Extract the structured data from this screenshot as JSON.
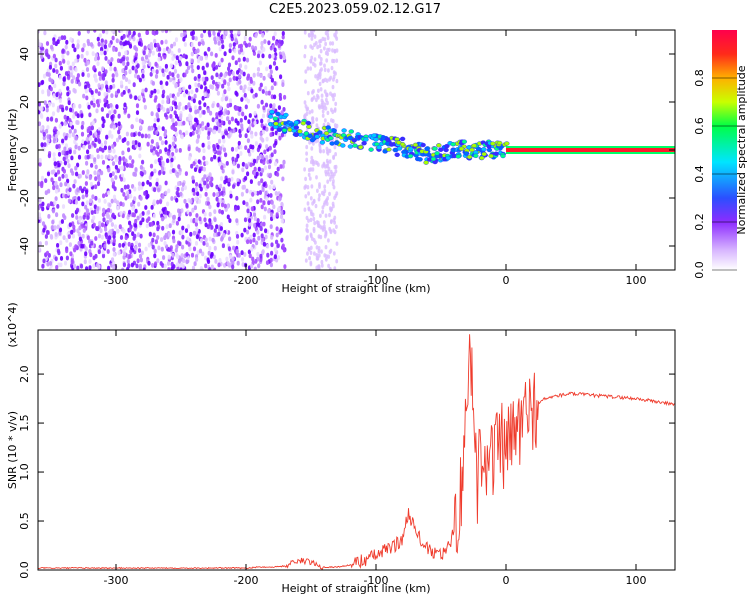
{
  "title": "C2E5.2023.059.02.12.G17",
  "colors": {
    "line": "#ef3b2c",
    "spectrum_low": "#8f2cff",
    "spectrum_mid": "#00e5ff",
    "spectrum_high": "#ff004c"
  },
  "chart_data": [
    {
      "type": "heatmap",
      "title": "C2E5.2023.059.02.12.G17",
      "xlabel": "Height of straight line (km)",
      "ylabel": "Frequency (Hz)",
      "xlim": [
        -360,
        130
      ],
      "ylim": [
        -50,
        50
      ],
      "x_ticks": [
        -300,
        -200,
        -100,
        0,
        100
      ],
      "y_ticks": [
        -40,
        -20,
        0,
        20,
        40
      ],
      "colorbar": {
        "label": "Normalized spectral amplitude",
        "range": [
          0.0,
          1.0
        ],
        "ticks": [
          0.0,
          0.2,
          0.4,
          0.6,
          0.8
        ]
      },
      "track": [
        {
          "x": -180,
          "y": 13
        },
        {
          "x": -160,
          "y": 9
        },
        {
          "x": -130,
          "y": 5
        },
        {
          "x": -100,
          "y": 3
        },
        {
          "x": -80,
          "y": 1
        },
        {
          "x": -60,
          "y": -2
        },
        {
          "x": -40,
          "y": 0
        },
        {
          "x": -20,
          "y": 0
        },
        {
          "x": 0,
          "y": 0
        },
        {
          "x": 130,
          "y": 0
        }
      ]
    },
    {
      "type": "line",
      "xlabel": "Height of straight line (km)",
      "ylabel": "SNR (10 * v/v)",
      "y_multiplier": "(x10^4)",
      "xlim": [
        -360,
        130
      ],
      "ylim": [
        0.0,
        2.45
      ],
      "x_ticks": [
        -300,
        -200,
        -100,
        0,
        100
      ],
      "y_ticks": [
        0.0,
        0.5,
        1.0,
        1.5,
        2.0
      ],
      "series": [
        {
          "x": [
            -360,
            -340,
            -320,
            -300,
            -280,
            -260,
            -240,
            -220,
            -200,
            -190,
            -180,
            -170,
            -160,
            -150,
            -140,
            -130,
            -120,
            -110,
            -100,
            -90,
            -80,
            -75,
            -70,
            -60,
            -50,
            -45,
            -40,
            -35,
            -30,
            -28,
            -25,
            -22,
            -20,
            -15,
            -10,
            -5,
            0,
            5,
            10,
            15,
            20,
            25,
            30,
            40,
            50,
            60,
            70,
            80,
            90,
            100,
            110,
            120,
            130
          ],
          "y": [
            0.02,
            0.02,
            0.02,
            0.02,
            0.02,
            0.02,
            0.02,
            0.02,
            0.02,
            0.03,
            0.03,
            0.04,
            0.1,
            0.08,
            0.03,
            0.03,
            0.05,
            0.1,
            0.15,
            0.22,
            0.3,
            0.6,
            0.4,
            0.2,
            0.15,
            0.2,
            0.4,
            0.8,
            1.5,
            2.4,
            1.7,
            0.8,
            1.3,
            1.2,
            1.1,
            1.3,
            1.2,
            1.35,
            1.45,
            1.55,
            1.65,
            1.7,
            1.75,
            1.78,
            1.8,
            1.79,
            1.78,
            1.77,
            1.76,
            1.75,
            1.73,
            1.71,
            1.69
          ]
        }
      ]
    }
  ]
}
